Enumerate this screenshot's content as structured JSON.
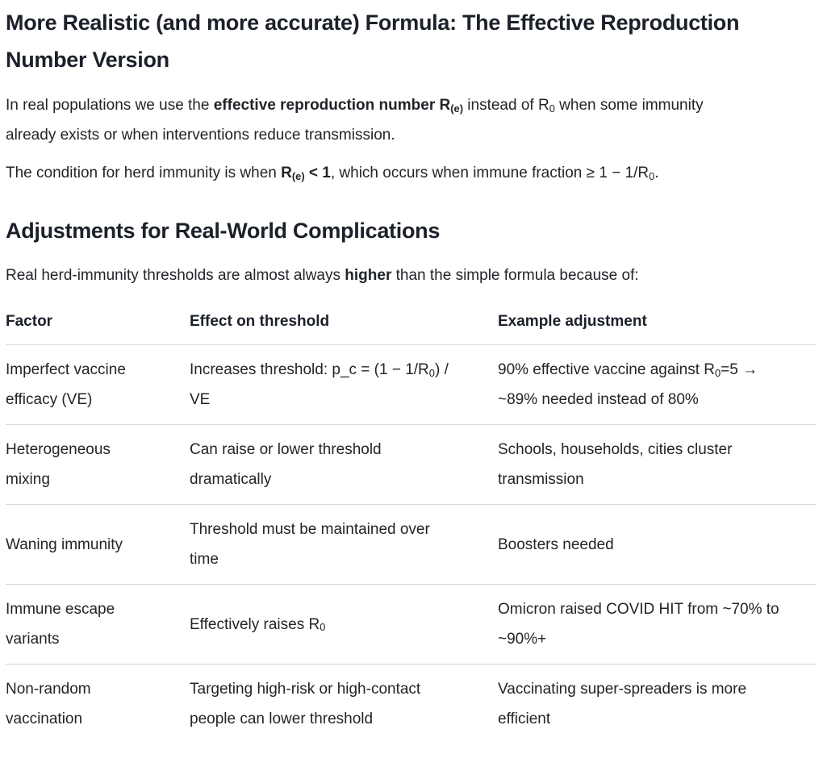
{
  "colors": {
    "background": "#ffffff",
    "body_text": "#212529",
    "heading_text": "#1b202a",
    "table_border": "#d2d9df"
  },
  "content": {
    "main_heading": "More Realistic (and more accurate) Formula: The Effective Reproduction Number Version",
    "p1": {
      "s1": "In real populations we use the ",
      "s2_bold": "effective reproduction number R",
      "s2_sub": "(e)",
      "s3": " instead of R",
      "s3_sub": "0",
      "s4": " when some immunity already exists or when interventions reduce transmission."
    },
    "p2": {
      "s1": "The condition for herd immunity is when ",
      "s2_bold": "R",
      "s2_sub": "(e)",
      "s3_bold": " < 1",
      "s4": ", which occurs when immune fraction ≥ 1 − 1/R",
      "s4_sub": "0",
      "s5": "."
    },
    "section_heading": "Adjustments for Real-World Complications",
    "p3": {
      "s1": "Real herd-immunity thresholds are almost always ",
      "s2_bold": "higher",
      "s3": " than the simple formula because of:"
    },
    "table": {
      "headers": [
        "Factor",
        "Effect on threshold",
        "Example adjustment"
      ],
      "rows": [
        {
          "factor": "Imperfect vaccine efficacy (VE)",
          "effect_pre": "Increases threshold: p_c = (1 − 1/R",
          "effect_sub": "0",
          "effect_post": ") / VE",
          "example_pre": "90% effective vaccine against R",
          "example_sub": "0",
          "example_post": "=5 → ~89% needed instead of 80%"
        },
        {
          "factor": "Heterogeneous mixing",
          "effect": "Can raise or lower threshold dramatically",
          "example": "Schools, households, cities cluster transmission"
        },
        {
          "factor": "Waning immunity",
          "effect": "Threshold must be maintained over time",
          "example": "Boosters needed"
        },
        {
          "factor": "Immune escape variants",
          "effect_pre": "Effectively raises R",
          "effect_sub": "0",
          "example": "Omicron raised COVID HIT from ~70% to ~90%+"
        },
        {
          "factor": "Non-random vaccination",
          "effect": "Targeting high-risk or high-contact people can lower threshold",
          "example": "Vaccinating super-spreaders is more efficient"
        }
      ]
    }
  }
}
